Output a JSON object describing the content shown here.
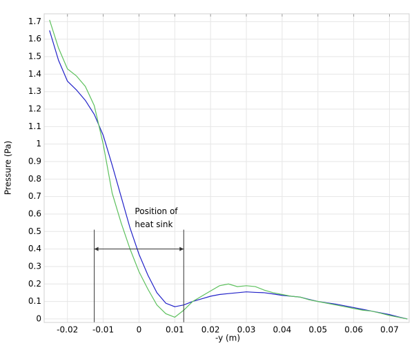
{
  "chart_data": {
    "type": "line",
    "xlabel": "-y (m)",
    "ylabel": "Pressure (Pa)",
    "x": [
      -0.025,
      -0.0225,
      -0.02,
      -0.0175,
      -0.015,
      -0.0125,
      -0.01,
      -0.0075,
      -0.005,
      -0.0025,
      0,
      0.0025,
      0.005,
      0.0075,
      0.01,
      0.0125,
      0.015,
      0.0175,
      0.02,
      0.0225,
      0.025,
      0.0275,
      0.03,
      0.0325,
      0.035,
      0.0375,
      0.04,
      0.0425,
      0.045,
      0.0475,
      0.05,
      0.0525,
      0.055,
      0.0575,
      0.06,
      0.0625,
      0.065,
      0.0675,
      0.07,
      0.0725,
      0.075
    ],
    "series": [
      {
        "color": "#2020c8",
        "values": [
          1.65,
          1.48,
          1.36,
          1.31,
          1.25,
          1.17,
          1.05,
          0.88,
          0.7,
          0.52,
          0.37,
          0.25,
          0.15,
          0.09,
          0.07,
          0.08,
          0.1,
          0.115,
          0.13,
          0.14,
          0.145,
          0.15,
          0.155,
          0.152,
          0.15,
          0.143,
          0.135,
          0.13,
          0.125,
          0.112,
          0.1,
          0.092,
          0.085,
          0.075,
          0.065,
          0.055,
          0.045,
          0.035,
          0.025,
          0.012,
          0
        ]
      },
      {
        "color": "#5cc05c",
        "values": [
          1.71,
          1.55,
          1.43,
          1.39,
          1.33,
          1.22,
          1.0,
          0.72,
          0.55,
          0.4,
          0.27,
          0.17,
          0.08,
          0.03,
          0.01,
          0.05,
          0.1,
          0.13,
          0.16,
          0.19,
          0.2,
          0.185,
          0.19,
          0.185,
          0.165,
          0.15,
          0.14,
          0.13,
          0.125,
          0.11,
          0.1,
          0.09,
          0.08,
          0.07,
          0.06,
          0.05,
          0.045,
          0.033,
          0.02,
          0.01,
          0
        ]
      }
    ],
    "xlim": [
      -0.0265,
      0.0755
    ],
    "ylim": [
      -0.02,
      1.745
    ],
    "xticks": [
      -0.02,
      -0.01,
      0,
      0.01,
      0.02,
      0.03,
      0.04,
      0.05,
      0.06,
      0.07
    ],
    "yticks": [
      0,
      0.1,
      0.2,
      0.3,
      0.4,
      0.5,
      0.6,
      0.7,
      0.8,
      0.9,
      1,
      1.1,
      1.2,
      1.3,
      1.4,
      1.5,
      1.6,
      1.7
    ],
    "grid": true,
    "annotation": {
      "lines": [
        "Position of",
        "heat sink"
      ],
      "x": [
        -0.0125,
        0.0125
      ],
      "y": 0.4
    }
  }
}
